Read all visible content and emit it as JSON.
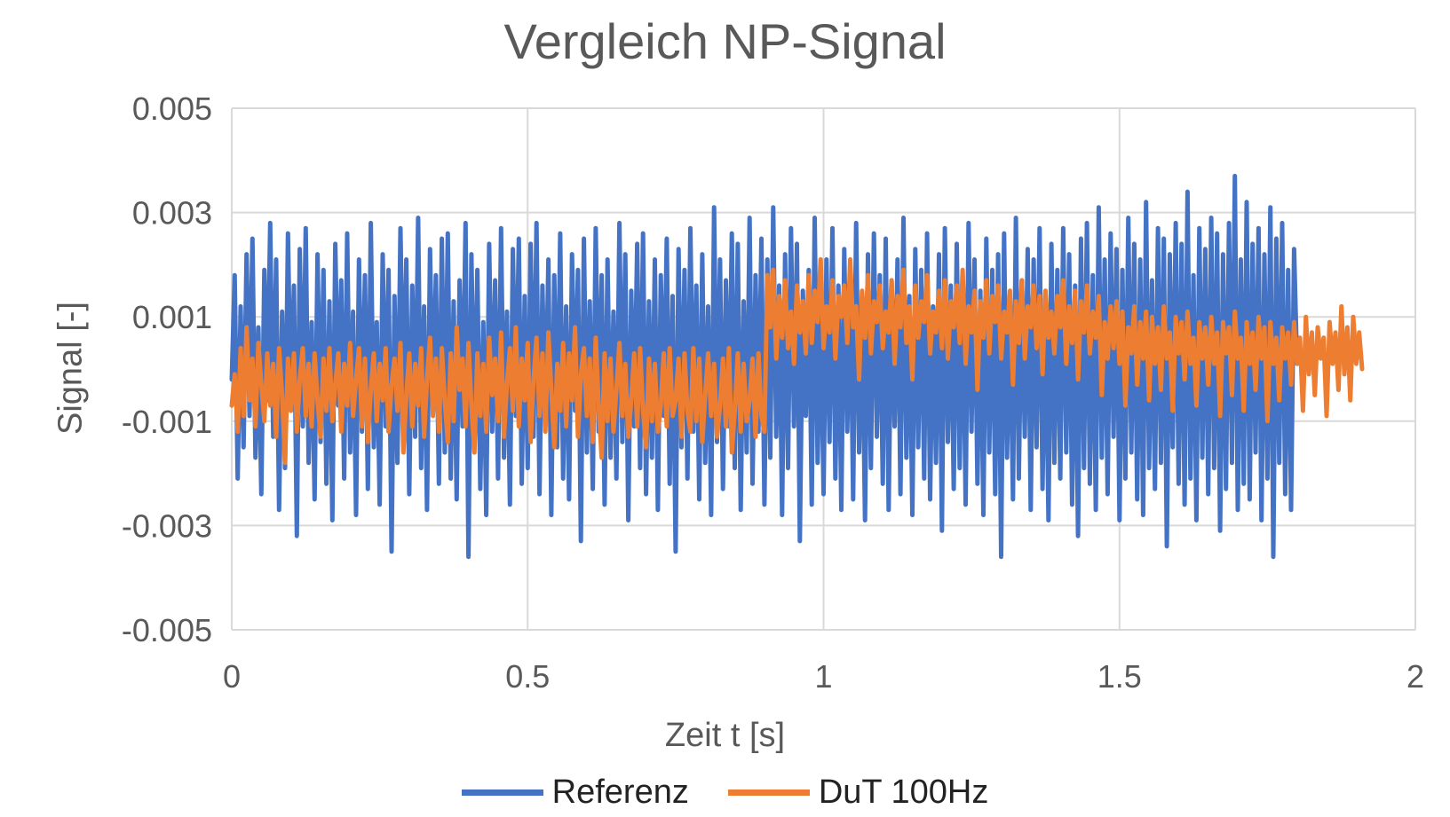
{
  "chart_data": {
    "type": "line",
    "title": "Vergleich NP-Signal",
    "xlabel": "Zeit t [s]",
    "ylabel": "Signal [-]",
    "xlim": [
      0,
      2
    ],
    "ylim": [
      -0.005,
      0.005
    ],
    "x_ticks": [
      "0",
      "0.5",
      "1",
      "1.5",
      "2"
    ],
    "y_ticks": [
      "0.005",
      "0.003",
      "0.001",
      "-0.001",
      "-0.003",
      "-0.005"
    ],
    "grid": true,
    "legend_position": "bottom",
    "series": [
      {
        "name": "Referenz",
        "color": "#4472C4",
        "x_start": 0,
        "x_step": 0.005,
        "values": [
          -0.0002,
          0.0018,
          -0.0021,
          0.0012,
          -0.0015,
          0.0022,
          -0.0009,
          0.0025,
          -0.0017,
          0.0008,
          -0.0024,
          0.0019,
          -0.0006,
          0.0028,
          -0.0013,
          0.0021,
          -0.0027,
          0.0011,
          -0.0019,
          0.0026,
          -0.0008,
          0.0016,
          -0.0032,
          0.0023,
          -0.0011,
          0.0027,
          -0.0018,
          0.0009,
          -0.0025,
          0.0022,
          -0.0014,
          0.0019,
          -0.0022,
          0.0013,
          -0.0029,
          0.0024,
          -0.0007,
          0.0017,
          -0.0021,
          0.0026,
          -0.0016,
          0.0011,
          -0.0028,
          0.0021,
          -0.0012,
          0.0018,
          -0.0023,
          0.0028,
          -0.0015,
          0.0009,
          -0.0026,
          0.0022,
          -0.0011,
          0.0019,
          -0.0035,
          0.0014,
          -0.0018,
          0.0027,
          -0.0009,
          0.0021,
          -0.0024,
          0.0016,
          -0.0013,
          0.0029,
          -0.0019,
          0.0012,
          -0.0027,
          0.0023,
          -0.0008,
          0.0018,
          -0.0022,
          0.0025,
          -0.0016,
          0.0026,
          -0.0021,
          0.0013,
          -0.0025,
          0.0017,
          -0.0011,
          0.0028,
          -0.0036,
          0.0022,
          -0.0014,
          0.0019,
          -0.0023,
          0.0009,
          -0.0028,
          0.0024,
          -0.0012,
          0.0017,
          -0.0021,
          0.0027,
          -0.0017,
          0.0011,
          -0.0026,
          0.0023,
          -0.0009,
          0.0025,
          -0.0022,
          0.0014,
          -0.0019,
          0.0024,
          -0.0013,
          0.0028,
          -0.0024,
          0.0016,
          -0.0011,
          0.0021,
          -0.0028,
          0.0018,
          -0.0015,
          0.0026,
          -0.0021,
          0.0012,
          -0.0025,
          0.0022,
          -0.0008,
          0.0019,
          -0.0033,
          0.0025,
          -0.0016,
          0.0013,
          -0.0023,
          0.0027,
          -0.0012,
          0.0018,
          -0.0026,
          0.0021,
          -0.0017,
          0.0011,
          -0.0021,
          0.0028,
          -0.0014,
          0.0022,
          -0.0029,
          0.0015,
          -0.0011,
          0.0024,
          -0.0019,
          0.0026,
          -0.0024,
          0.0013,
          -0.0017,
          0.0021,
          -0.0027,
          0.0018,
          -0.0009,
          0.0025,
          -0.0022,
          0.0014,
          -0.0035,
          0.0023,
          -0.0015,
          0.0019,
          -0.0021,
          0.0027,
          -0.0012,
          0.0016,
          -0.0025,
          0.0022,
          -0.0018,
          0.0012,
          -0.0028,
          0.0031,
          -0.0014,
          0.0021,
          -0.0023,
          0.0017,
          -0.0011,
          0.0026,
          -0.0019,
          0.0024,
          -0.0027,
          0.0013,
          -0.0016,
          0.0029,
          -0.0022,
          0.0018,
          -0.0012,
          0.0025,
          -0.0026,
          0.0021,
          -0.0017,
          0.0031,
          -0.0013,
          0.0016,
          -0.0028,
          0.0022,
          -0.0019,
          0.0027,
          -0.0011,
          0.0024,
          -0.0033,
          0.0015,
          -0.0009,
          0.0019,
          -0.0026,
          0.0029,
          -0.0018,
          0.0012,
          -0.0024,
          0.0021,
          -0.0014,
          0.0027,
          -0.0021,
          0.0016,
          -0.0027,
          0.0023,
          -0.0012,
          0.0019,
          -0.0025,
          0.0028,
          -0.0016,
          0.0013,
          -0.0029,
          0.0022,
          -0.0019,
          0.0026,
          -0.0013,
          0.0018,
          -0.0022,
          0.0025,
          -0.0027,
          0.0017,
          -0.0011,
          0.0021,
          -0.0024,
          0.0029,
          -0.0017,
          0.0014,
          -0.0028,
          0.0023,
          -0.0015,
          0.0019,
          -0.0021,
          0.0026,
          -0.0025,
          0.0012,
          -0.0018,
          0.0022,
          -0.0031,
          0.0027,
          -0.0014,
          0.0016,
          -0.0023,
          0.0024,
          -0.0019,
          0.0018,
          -0.0026,
          0.0028,
          -0.0012,
          0.0021,
          -0.0022,
          0.0015,
          -0.0028,
          0.0025,
          -0.0016,
          0.0019,
          -0.0024,
          0.0022,
          -0.0036,
          0.0026,
          -0.0017,
          0.0013,
          -0.0025,
          0.0029,
          -0.0021,
          0.0017,
          -0.0013,
          0.0023,
          -0.0027,
          0.0021,
          -0.0015,
          0.0027,
          -0.0023,
          0.0014,
          -0.0029,
          0.0024,
          -0.0018,
          0.0019,
          -0.0021,
          0.0027,
          -0.0016,
          0.0022,
          -0.0026,
          0.0016,
          -0.0032,
          0.0025,
          -0.0019,
          0.0028,
          -0.0022,
          0.0018,
          -0.0027,
          0.0031,
          -0.0017,
          0.0021,
          -0.0024,
          0.0026,
          -0.0013,
          0.0023,
          -0.0029,
          0.0019,
          -0.0021,
          0.0029,
          -0.0016,
          0.0024,
          -0.0025,
          0.0021,
          -0.0028,
          0.0032,
          -0.0019,
          0.0017,
          -0.0023,
          0.0027,
          -0.0018,
          0.0025,
          -0.0034,
          0.0022,
          -0.0015,
          0.0028,
          -0.0022,
          0.0024,
          -0.0026,
          0.0034,
          -0.0021,
          0.0018,
          -0.0029,
          0.0027,
          -0.0017,
          0.0023,
          -0.0024,
          0.0029,
          -0.0019,
          0.0026,
          -0.0031,
          0.0022,
          -0.0023,
          0.0028,
          -0.0018,
          0.0037,
          -0.0027,
          0.0021,
          -0.0022,
          0.0032,
          -0.0025,
          0.0024,
          -0.0016,
          0.0027,
          -0.0029,
          0.0022,
          -0.0021,
          0.0031,
          -0.0036,
          0.0025,
          -0.0018,
          0.0028,
          -0.0024,
          0.0019,
          -0.0027,
          0.0023,
          0.0001
        ]
      },
      {
        "name": "DuT 100Hz",
        "color": "#ED7D31",
        "x_start": 0,
        "x_step": 0.005,
        "values": [
          -0.0007,
          -0.0001,
          -0.0012,
          0.0004,
          -0.0009,
          0.0008,
          -0.0006,
          0.0002,
          -0.0011,
          0.0005,
          -0.0003,
          -0.001,
          0.0003,
          -0.0007,
          0.0001,
          -0.0013,
          0.0004,
          -0.0005,
          -0.0018,
          0.0002,
          -0.0008,
          0.0003,
          -0.0012,
          -0.0002,
          0.0004,
          -0.0009,
          0.0001,
          -0.0011,
          0.0003,
          -0.0006,
          -0.0013,
          0.0002,
          -0.0008,
          0.0004,
          -0.001,
          -0.0003,
          0.0003,
          -0.0012,
          0.0001,
          -0.0007,
          0.0005,
          -0.0009,
          -0.0002,
          0.0004,
          -0.0011,
          0.0002,
          -0.0014,
          -0.0004,
          0.0003,
          -0.001,
          0.0001,
          -0.0006,
          0.0004,
          -0.0012,
          -0.0003,
          0.0002,
          -0.0008,
          0.0005,
          -0.0016,
          -0.0005,
          0.0003,
          -0.0011,
          0.0001,
          -0.0007,
          0.0004,
          -0.0013,
          -0.0002,
          0.0006,
          -0.0009,
          0.0002,
          -0.0012,
          0.0004,
          -0.0006,
          -0.0014,
          0.0003,
          -0.001,
          0.0008,
          -0.0004,
          0.0002,
          -0.0011,
          0.0005,
          -0.0007,
          -0.0016,
          0.0003,
          -0.0009,
          0.0001,
          -0.0012,
          0.0006,
          -0.0005,
          0.0002,
          -0.001,
          0.0007,
          -0.0013,
          -0.0003,
          0.0004,
          -0.0008,
          0.0008,
          -0.0011,
          0.0002,
          -0.0006,
          0.0005,
          -0.0014,
          -0.0002,
          0.0006,
          -0.0009,
          0.0003,
          -0.0012,
          0.0007,
          -0.0004,
          -0.0015,
          0.0001,
          -0.0008,
          0.0005,
          -0.0011,
          0.0003,
          -0.0006,
          0.0008,
          -0.0013,
          -0.0001,
          0.0004,
          -0.0009,
          0.0002,
          -0.0014,
          0.0006,
          -0.0007,
          -0.0017,
          0.0003,
          -0.001,
          0.0002,
          -0.0012,
          -0.0004,
          0.0005,
          -0.0009,
          0.0001,
          -0.0013,
          -0.0006,
          0.0003,
          -0.0011,
          0.0004,
          -0.0008,
          -0.0015,
          0.0002,
          -0.001,
          0.0001,
          -0.0012,
          -0.0007,
          0.0003,
          -0.0011,
          0.0004,
          -0.0009,
          -0.0006,
          0.0002,
          -0.0013,
          0.0003,
          -0.0008,
          -0.0012,
          0.0004,
          -0.001,
          0.0002,
          -0.0014,
          -0.0005,
          0.0003,
          -0.0009,
          0.0001,
          -0.0013,
          -0.0007,
          0.0002,
          -0.0011,
          0.0004,
          -0.0016,
          -0.0008,
          0.0003,
          -0.0012,
          0.0001,
          -0.001,
          -0.0006,
          0.0002,
          -0.0013,
          0.0003,
          -0.0009,
          -0.0012,
          0.0018,
          0.0008,
          0.0019,
          0.0002,
          0.0014,
          0.0006,
          0.0017,
          0.0004,
          0.0011,
          0.0001,
          0.0016,
          0.0007,
          0.0013,
          0.0003,
          0.0018,
          0.0005,
          0.0015,
          0.0009,
          0.0021,
          0.0004,
          0.0012,
          0.0007,
          0.0017,
          0.0002,
          0.0014,
          0.001,
          0.0016,
          0.0005,
          0.0021,
          0.0008,
          0.0012,
          -0.0002,
          0.0015,
          0.0006,
          0.0018,
          0.0003,
          0.0013,
          0.0009,
          0.0016,
          0.0004,
          0.0011,
          0.0007,
          0.0017,
          0.0001,
          0.0014,
          0.0008,
          0.0019,
          0.0005,
          0.0012,
          -0.0002,
          0.0016,
          0.0006,
          0.0013,
          0.0009,
          0.0018,
          0.0003,
          0.0011,
          0.0007,
          0.0015,
          0.0004,
          0.0017,
          0.0002,
          0.0013,
          0.0008,
          0.0016,
          0.0005,
          0.0019,
          0.0001,
          0.0012,
          0.0007,
          0.0015,
          -0.0004,
          0.0013,
          0.0006,
          0.0017,
          0.0003,
          0.0014,
          0.0009,
          0.0016,
          0.0002,
          0.0011,
          0.0007,
          0.0015,
          -0.0003,
          0.0013,
          0.0005,
          0.0017,
          0.0002,
          0.0012,
          0.0008,
          0.0016,
          0.0004,
          0.0014,
          -0.0001,
          0.0015,
          0.0006,
          0.0011,
          0.0003,
          0.0014,
          0.0008,
          0.0017,
          0.0001,
          0.0012,
          0.0005,
          0.0015,
          -0.0002,
          0.0013,
          0.0007,
          0.0016,
          0.0003,
          0.0011,
          0.0006,
          0.0014,
          -0.0005,
          0.0009,
          0.0002,
          0.0012,
          0.0004,
          0.0013,
          0.0001,
          0.0011,
          -0.0007,
          0.0008,
          0.0003,
          0.0012,
          -0.0003,
          0.0009,
          0.0002,
          0.0011,
          -0.0006,
          0.001,
          0.0001,
          0.0008,
          -0.0004,
          0.0012,
          0.0002,
          0.0007,
          -0.0008,
          0.001,
          0.0003,
          0.0009,
          -0.0002,
          0.0011,
          0.0001,
          0.0006,
          -0.0007,
          0.0009,
          0.0002,
          0.0008,
          -0.0003,
          0.001,
          0.0001,
          0.0007,
          -0.0009,
          0.0009,
          0.0003,
          0.0008,
          -0.0005,
          0.0011,
          0.0002,
          0.0006,
          -0.0008,
          0.0009,
          0.0001,
          0.0007,
          -0.0004,
          0.001,
          0.0002,
          0.0008,
          -0.001,
          0.0009,
          0.0001,
          0.0006,
          -0.0006,
          0.0008,
          0.0002,
          0.0007,
          -0.0003,
          0.0009,
          0.0001,
          0.0006,
          -0.0008,
          0.001,
          -0.0001,
          0.0007,
          -0.0005,
          0.0008,
          0.0002,
          0.0006,
          -0.0009,
          0.0009,
          0.0001,
          0.0007,
          -0.0004,
          0.0012,
          -0.0001,
          0.0008,
          -0.0006,
          0.001,
          0.0001,
          0.0007,
          0.0
        ]
      }
    ]
  }
}
